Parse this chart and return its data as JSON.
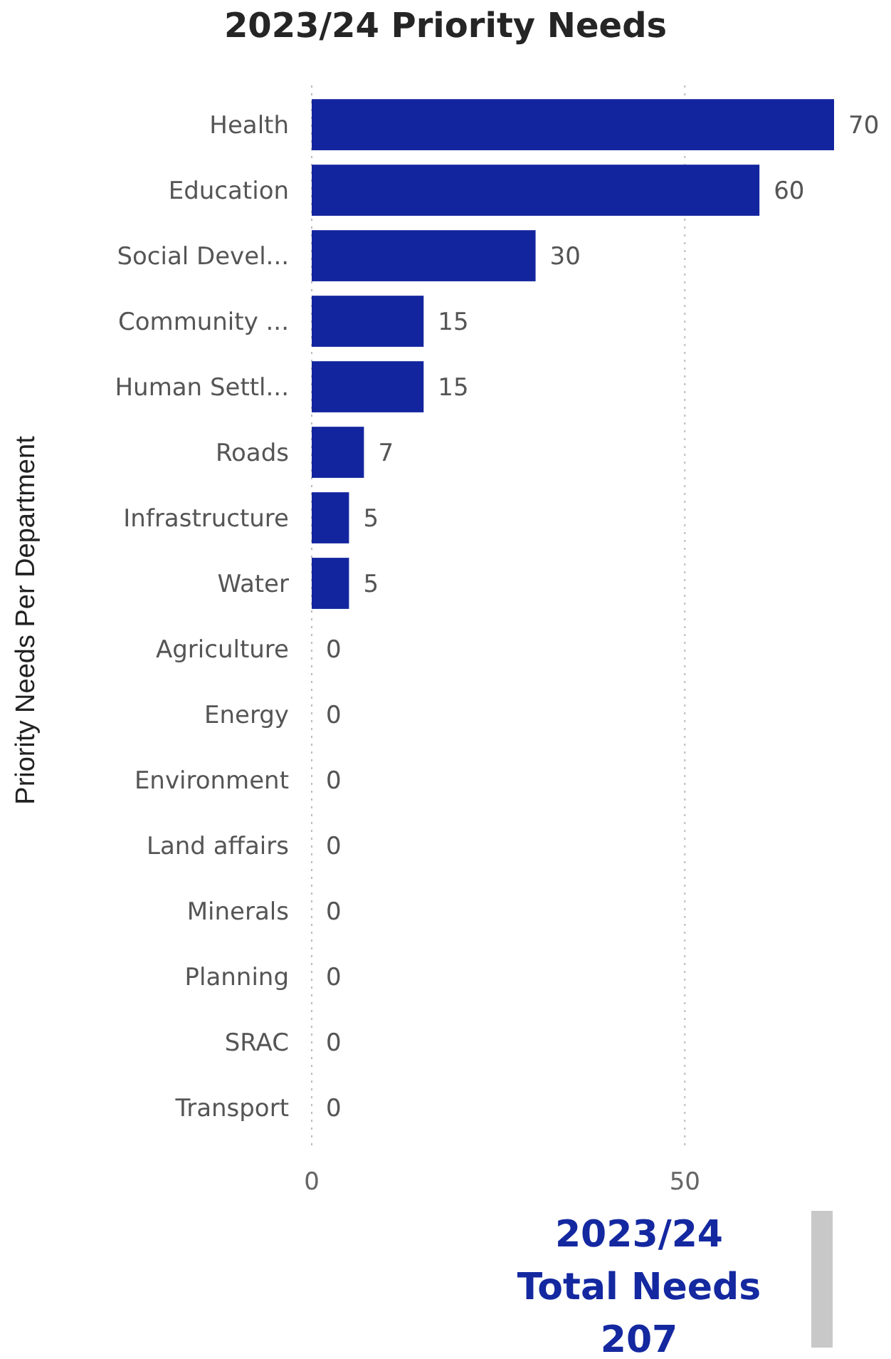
{
  "chart_data": {
    "type": "bar",
    "orientation": "horizontal",
    "title": "2023/24 Priority Needs",
    "ylabel": "Priority Needs Per Department",
    "categories": [
      "Health",
      "Education",
      "Social Devel...",
      "Community ...",
      "Human Settl...",
      "Roads",
      "Infrastructure",
      "Water",
      "Agriculture",
      "Energy",
      "Environment",
      "Land affairs",
      "Minerals",
      "Planning",
      "SRAC",
      "Transport"
    ],
    "values": [
      70,
      60,
      30,
      15,
      15,
      7,
      5,
      5,
      0,
      0,
      0,
      0,
      0,
      0,
      0,
      0
    ],
    "color": "#13259e",
    "xlim": [
      0,
      70
    ],
    "xticks": [
      0,
      50
    ],
    "grid": "x",
    "data_labels": true,
    "annotations": [
      "2023/24\nTotal Needs\n207"
    ]
  }
}
